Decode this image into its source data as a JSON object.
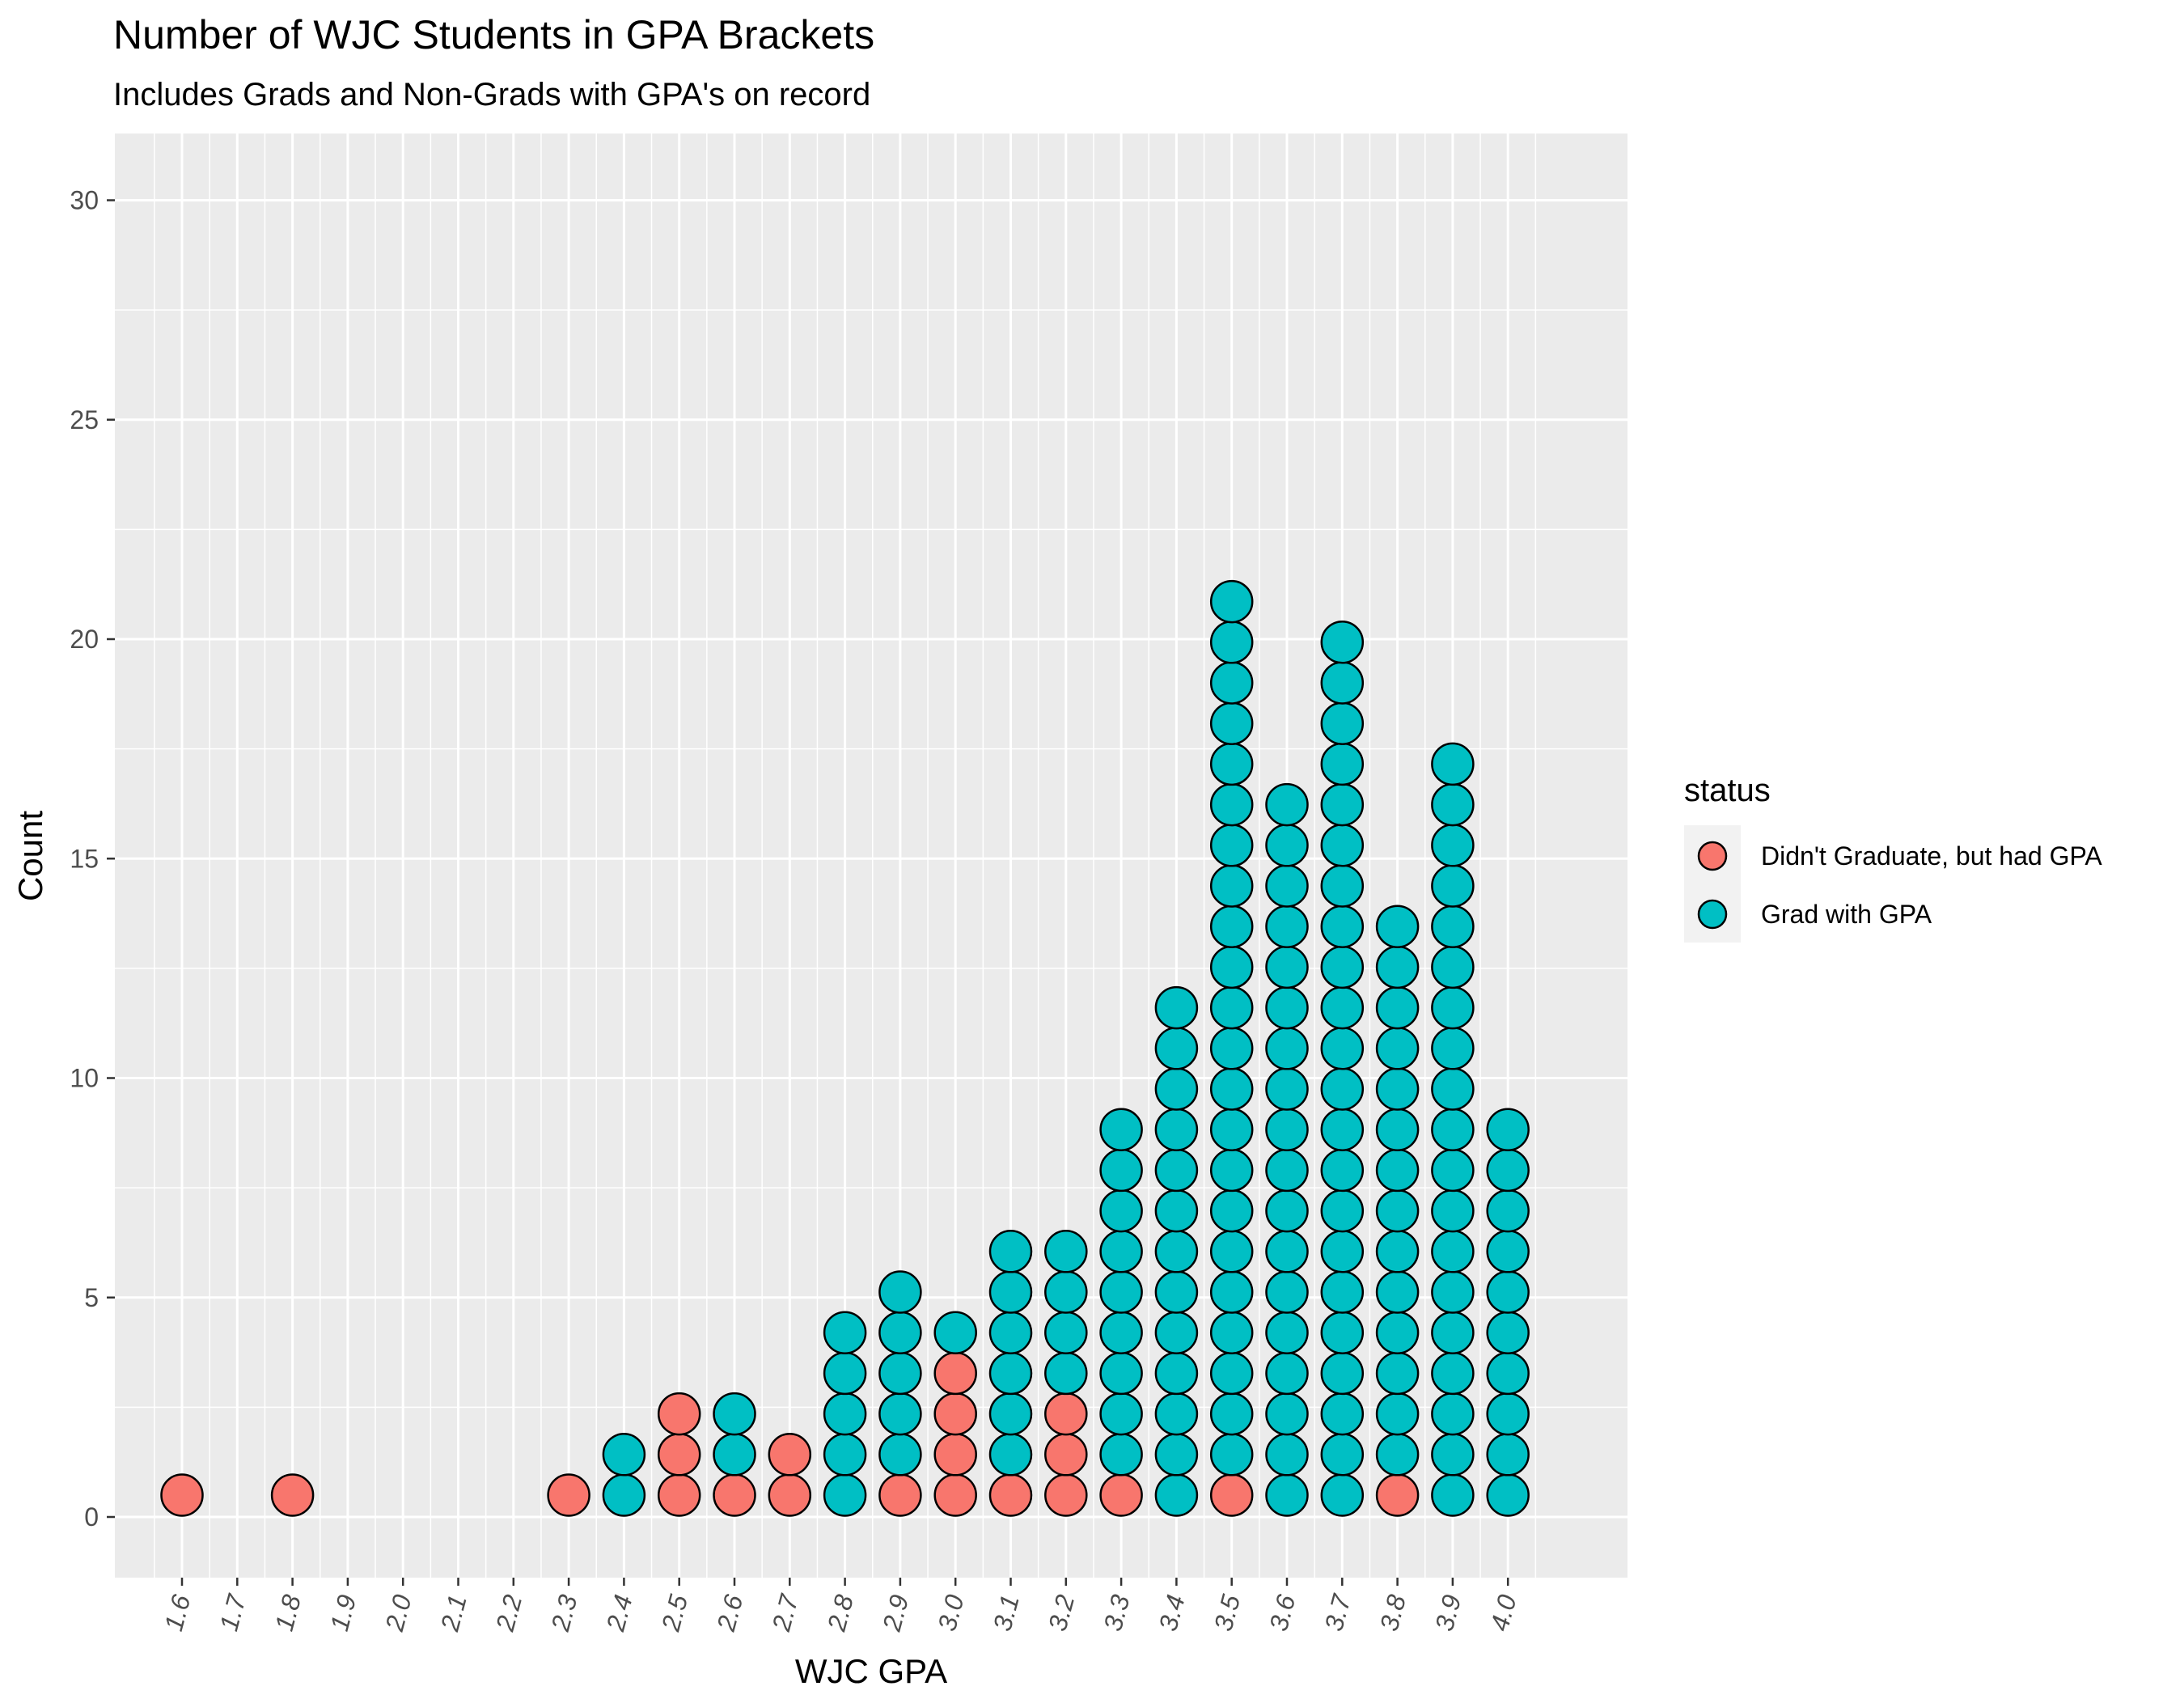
{
  "chart_data": {
    "type": "dotplot",
    "title": "Number of WJC Students in GPA Brackets",
    "subtitle": "Includes Grads and Non-Grads with GPA's on record",
    "xlabel": "WJC GPA",
    "ylabel": "Count",
    "ylim": [
      0,
      30
    ],
    "yticks": [
      0,
      5,
      10,
      15,
      20,
      25,
      30
    ],
    "y_tick_labels": [
      "0",
      "5",
      "10",
      "15",
      "20",
      "25",
      "30"
    ],
    "x_categories": [
      "1.6",
      "1.7",
      "1.8",
      "1.9",
      "2.0",
      "2.1",
      "2.2",
      "2.3",
      "2.4",
      "2.5",
      "2.6",
      "2.7",
      "2.8",
      "2.9",
      "3.0",
      "3.1",
      "3.2",
      "3.3",
      "3.4",
      "3.5",
      "3.6",
      "3.7",
      "3.8",
      "3.9",
      "4.0"
    ],
    "grid": true,
    "legend_position": "right",
    "legend_title": "status",
    "series": [
      {
        "name": "Didn't Graduate, but had GPA",
        "color": "#F8766D",
        "values": [
          1,
          0,
          1,
          0,
          0,
          0,
          0,
          1,
          0,
          3,
          1,
          2,
          0,
          1,
          4,
          1,
          3,
          1,
          0,
          1,
          0,
          0,
          1,
          0,
          0
        ]
      },
      {
        "name": "Grad with GPA",
        "color": "#00BFC4",
        "values": [
          0,
          0,
          0,
          0,
          0,
          0,
          0,
          0,
          2,
          0,
          2,
          0,
          5,
          5,
          1,
          6,
          4,
          9,
          13,
          22,
          18,
          22,
          14,
          19,
          10
        ]
      }
    ]
  }
}
